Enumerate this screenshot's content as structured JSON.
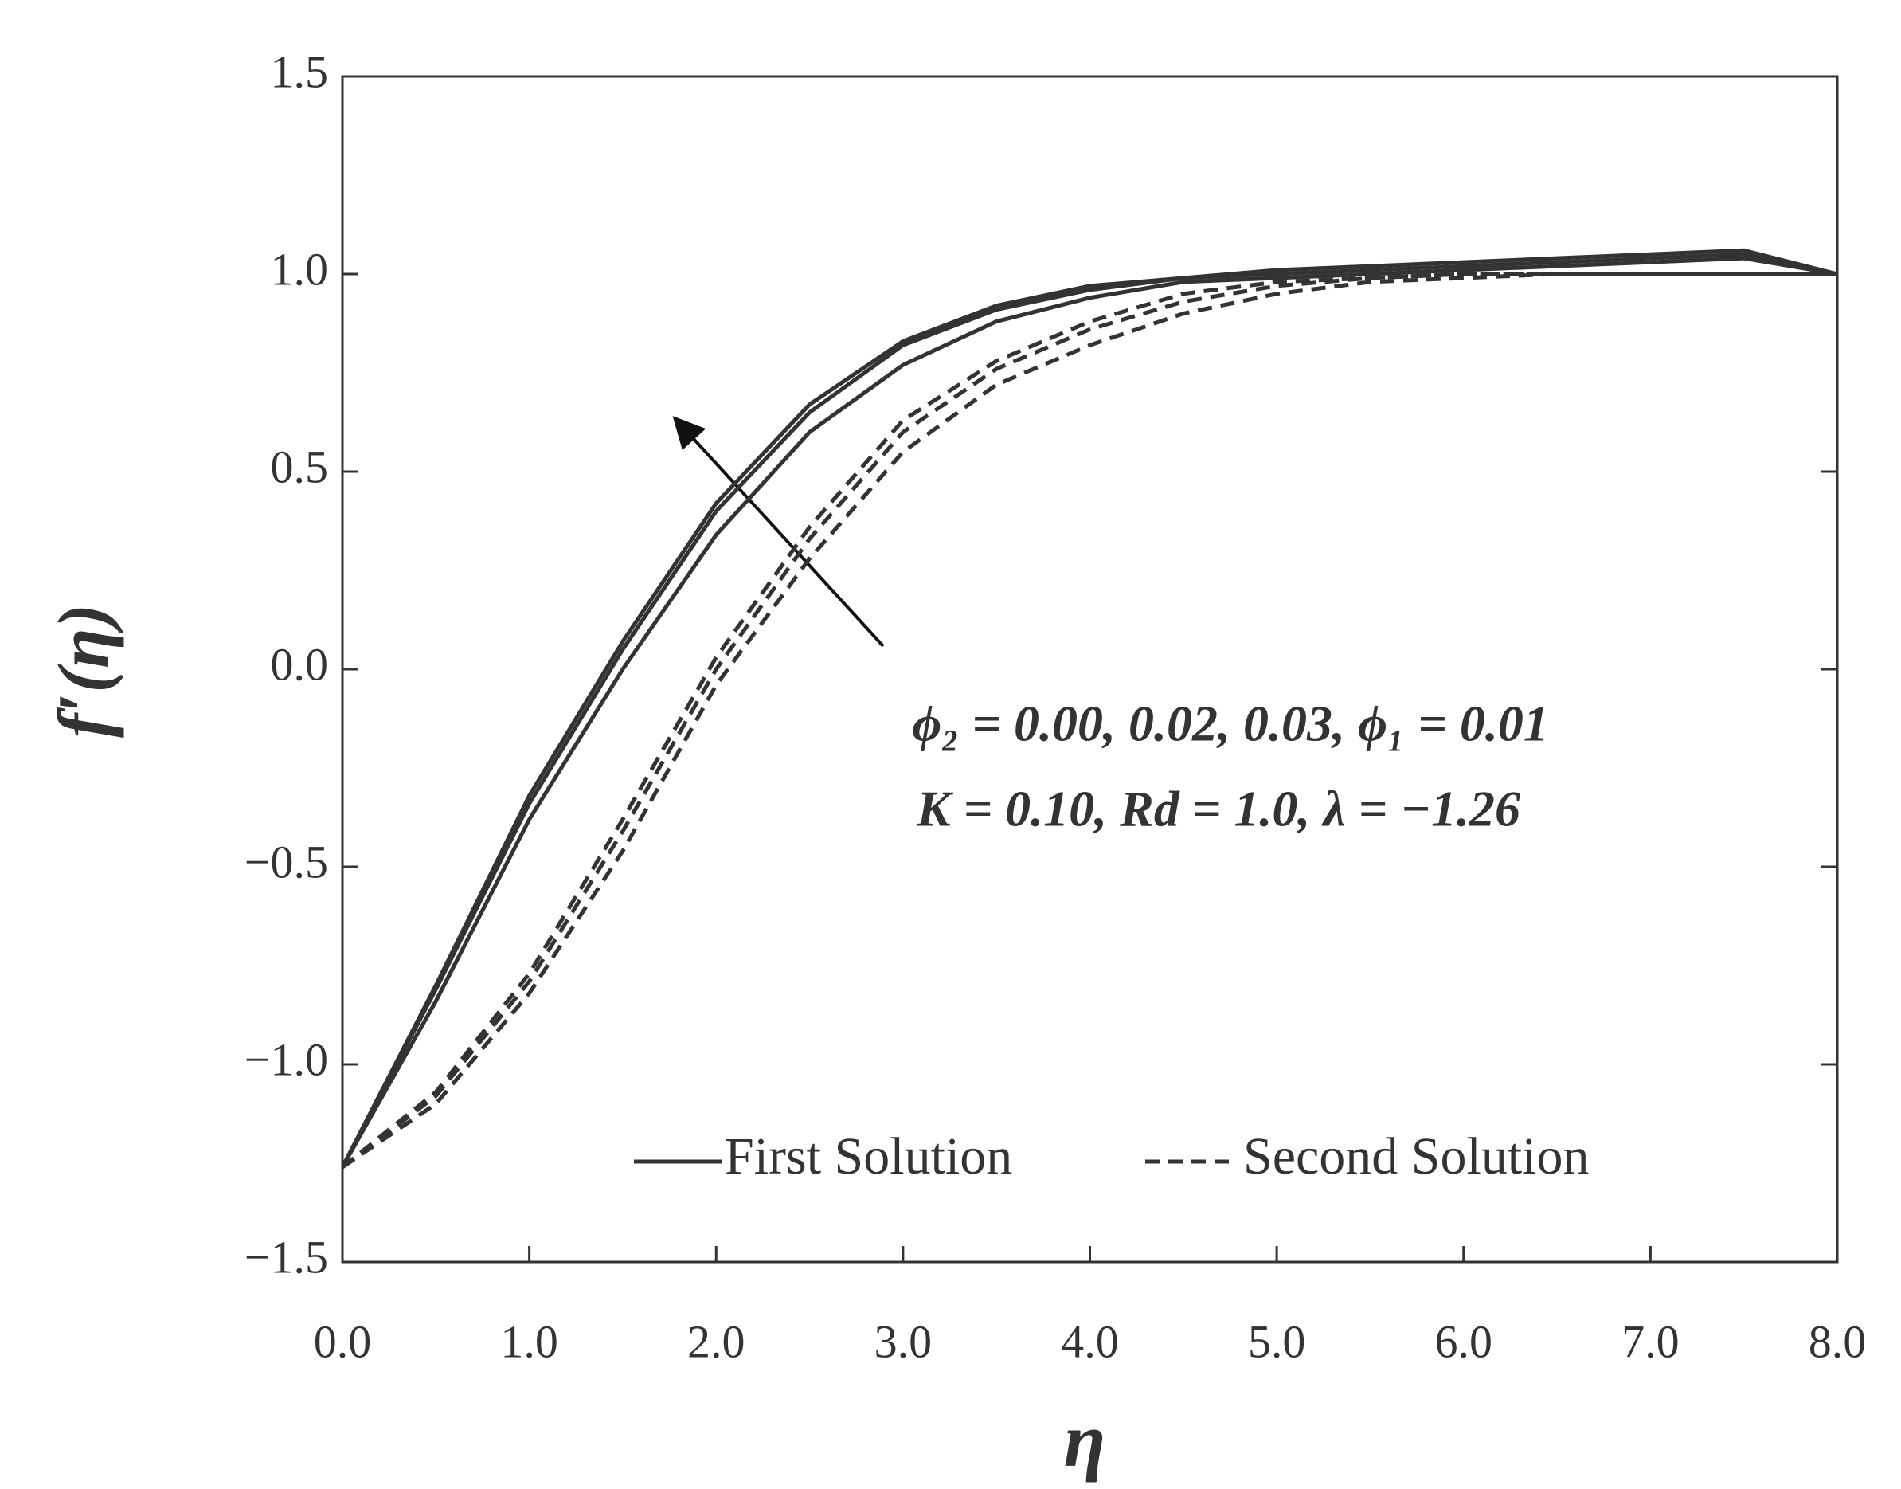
{
  "chart_data": {
    "type": "line",
    "x": [
      0,
      0.5,
      1,
      1.5,
      2,
      2.5,
      3,
      3.5,
      4,
      4.5,
      5,
      5.5,
      6,
      6.5,
      7,
      7.5,
      8
    ],
    "series": [
      {
        "style": "solid",
        "values": [
          -1.26,
          -0.8,
          -0.32,
          0.07,
          0.42,
          0.67,
          0.83,
          0.92,
          0.97,
          0.99,
          1.01,
          1.02,
          1.03,
          1.04,
          1.05,
          1.06,
          1.0
        ]
      },
      {
        "style": "solid",
        "values": [
          -1.26,
          -0.81,
          -0.34,
          0.05,
          0.4,
          0.65,
          0.82,
          0.91,
          0.96,
          0.99,
          1.0,
          1.01,
          1.02,
          1.03,
          1.04,
          1.05,
          1.0
        ]
      },
      {
        "style": "solid",
        "values": [
          -1.26,
          -0.84,
          -0.38,
          0.0,
          0.34,
          0.6,
          0.77,
          0.88,
          0.94,
          0.98,
          0.99,
          1.0,
          1.01,
          1.02,
          1.03,
          1.04,
          1.0
        ]
      },
      {
        "style": "dashed",
        "values": [
          -1.26,
          -1.07,
          -0.77,
          -0.38,
          0.03,
          0.36,
          0.63,
          0.78,
          0.88,
          0.95,
          0.98,
          0.99,
          1.0,
          1.0,
          1.0,
          1.0,
          1.0
        ]
      },
      {
        "style": "dashed",
        "values": [
          -1.26,
          -1.08,
          -0.79,
          -0.41,
          0.0,
          0.33,
          0.6,
          0.76,
          0.86,
          0.93,
          0.97,
          0.99,
          1.0,
          1.0,
          1.0,
          1.0,
          1.0
        ]
      },
      {
        "style": "dashed",
        "values": [
          -1.26,
          -1.1,
          -0.82,
          -0.46,
          -0.04,
          0.28,
          0.55,
          0.72,
          0.82,
          0.9,
          0.95,
          0.98,
          0.99,
          1.0,
          1.0,
          1.0,
          1.0
        ]
      }
    ],
    "legend": [
      {
        "name": "First Solution",
        "style": "solid"
      },
      {
        "name": "Second Solution",
        "style": "dashed"
      }
    ],
    "color": "#333333",
    "xlabel": "η",
    "ylabel": "f′(η)",
    "annotations": [
      "ϕ₂ = 0.00, 0.02, 0.03, ϕ₁ = 0.01",
      "K = 0.10, Rd = 1.0, λ = −1.26"
    ],
    "xlim": [
      0,
      8
    ],
    "xticks": [
      {
        "value": 0,
        "label": "0.0"
      },
      {
        "value": 1,
        "label": "1.0"
      },
      {
        "value": 2,
        "label": "2.0"
      },
      {
        "value": 3,
        "label": "3.0"
      },
      {
        "value": 4,
        "label": "4.0"
      },
      {
        "value": 5,
        "label": "5.0"
      },
      {
        "value": 6,
        "label": "6.0"
      },
      {
        "value": 7,
        "label": "7.0"
      },
      {
        "value": 8,
        "label": "8.0"
      }
    ],
    "ylim": [
      -1.5,
      1.5
    ],
    "yticks": [
      {
        "value": -1.5,
        "label": "−1.5"
      },
      {
        "value": -1,
        "label": "−1.0"
      },
      {
        "value": -0.5,
        "label": "−0.5"
      },
      {
        "value": 0,
        "label": "0.0"
      },
      0.5,
      {
        "value": 1,
        "label": "1.0"
      },
      1.5
    ]
  }
}
